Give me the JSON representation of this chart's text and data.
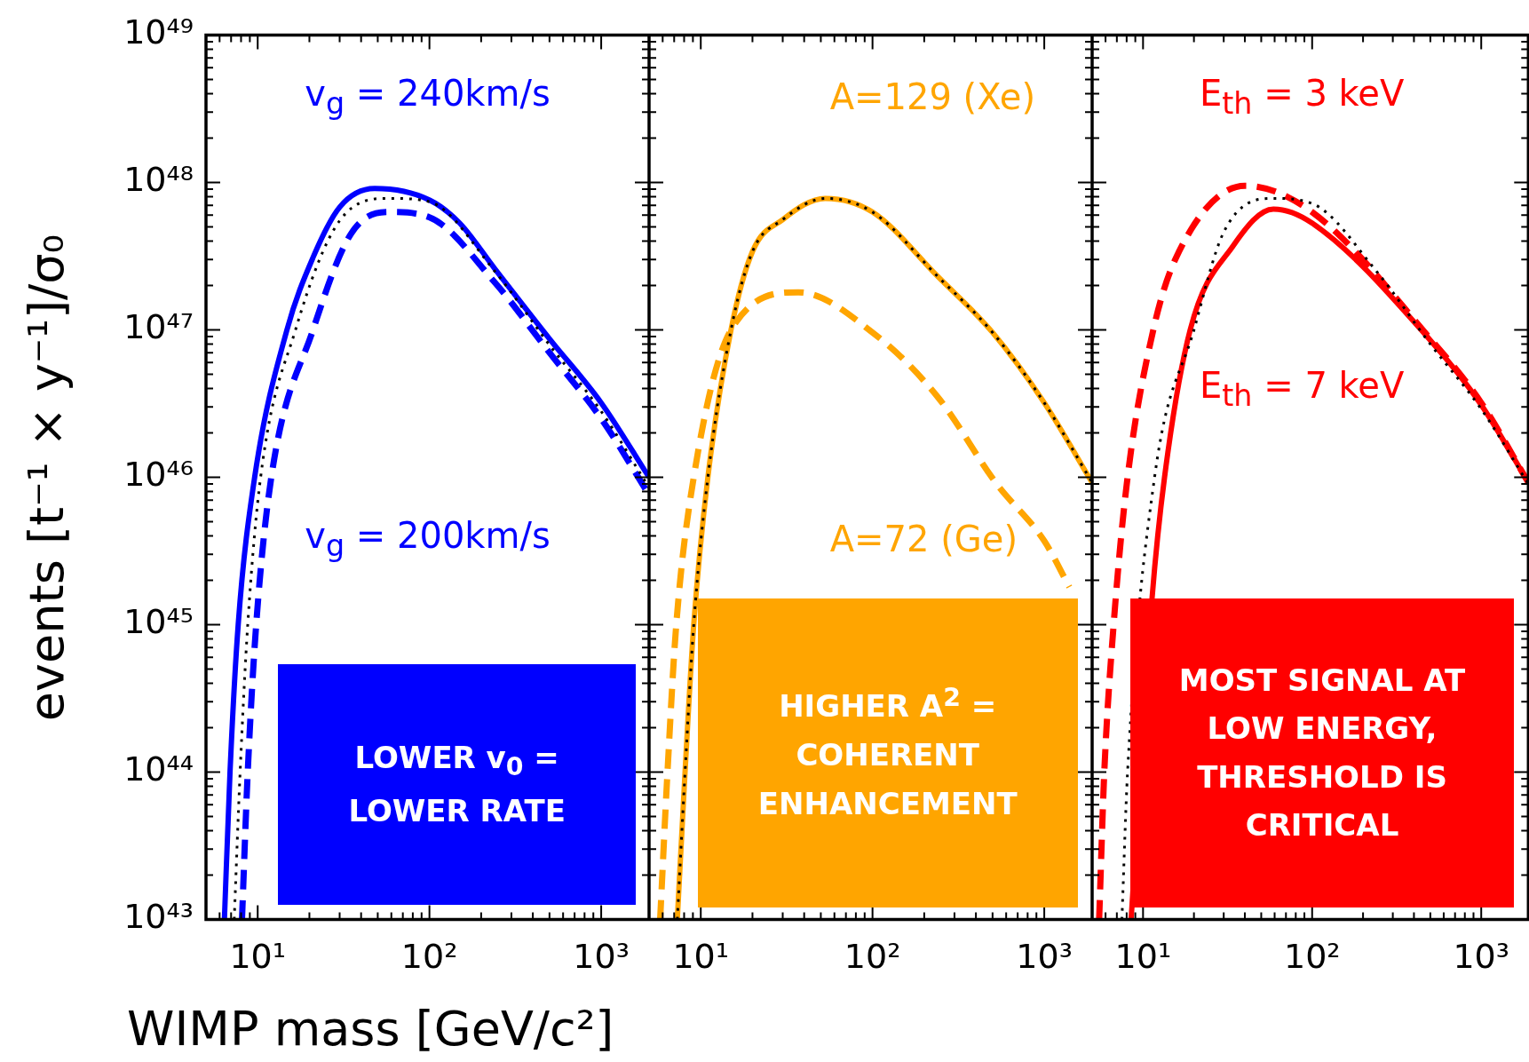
{
  "chart_data": [
    {
      "type": "line",
      "xlabel": "WIMP mass [GeV/c²]",
      "ylabel": "events [t⁻¹ × y⁻¹]/σ₀",
      "log": "xy",
      "xlim": [
        5,
        1900
      ],
      "ylim": [
        1e+43,
        1e+49
      ],
      "xticks": [
        {
          "value": 10,
          "label": "10¹"
        },
        {
          "value": 100,
          "label": "10²"
        },
        {
          "value": 1000,
          "label": "10³"
        }
      ],
      "yticks": [
        {
          "value": 1e+43,
          "label": "10⁴³"
        },
        {
          "value": 1e+44,
          "label": "10⁴⁴"
        },
        {
          "value": 1e+45,
          "label": "10⁴⁵"
        },
        {
          "value": 1e+46,
          "label": "10⁴⁶"
        },
        {
          "value": 1e+47,
          "label": "10⁴⁷"
        },
        {
          "value": 1e+48,
          "label": "10⁴⁸"
        },
        {
          "value": 1e+49,
          "label": "10⁴⁹"
        }
      ],
      "series": [
        {
          "name": "v$_{g}$ = 240km/s",
          "color": "#0000ff",
          "line_style": "solid",
          "x": [
            6.4,
            6.9,
            7.7,
            9.6,
            14.8,
            21,
            30,
            48,
            100,
            150,
            240,
            500,
            1000,
            1900
          ],
          "values": [
            1e+43,
            1e+44,
            1e+45,
            1e+46,
            1e+47,
            3.1e+47,
            6.8e+47,
            9.1e+47,
            7.6e+47,
            5.3e+47,
            2.6e+47,
            8.7e+46,
            3.2e+46,
            1e+46
          ]
        },
        {
          "name": "v$_{g}$ = 200km/s",
          "color": "#0000ff",
          "line_style": "dashed",
          "x": [
            8.1,
            8.75,
            9.8,
            12,
            21,
            35,
            58,
            100,
            240,
            500,
            1000,
            1900
          ],
          "values": [
            1e+43,
            1e+44,
            1e+45,
            1e+46,
            1e+47,
            4.5e+47,
            6.3e+47,
            5.8e+47,
            2.1e+47,
            7e+46,
            2.5e+46,
            7.6e+45
          ]
        },
        {
          "color": "#000000",
          "line_style": "dotted",
          "x": [
            7.3,
            7.9,
            8.75,
            10.4,
            16.6,
            30,
            58,
            100,
            240,
            500,
            1000,
            1900
          ],
          "values": [
            1e+43,
            1e+44,
            1e+45,
            1e+46,
            1e+47,
            5.5e+47,
            7.8e+47,
            7.4e+47,
            2.5e+47,
            7.9e+46,
            2.8e+46,
            8.5e+45
          ]
        }
      ],
      "annotations": [
        "LOWER v$_{0}$ = LOWER RATE"
      ]
    },
    {
      "type": "line",
      "log": "xy",
      "xlim": [
        5,
        1900
      ],
      "ylim": [
        1e+43,
        1e+49
      ],
      "tick_labels": "x",
      "xticks": [
        {
          "value": 10,
          "label": "10¹"
        },
        {
          "value": 100,
          "label": "10²"
        },
        {
          "value": 1000,
          "label": "10³"
        }
      ],
      "yticks": [
        {
          "value": 1e+43,
          "label": null
        },
        {
          "value": 1e+44,
          "label": null
        },
        {
          "value": 1e+45,
          "label": null
        },
        {
          "value": 1e+46,
          "label": null
        },
        {
          "value": 1e+47,
          "label": null
        },
        {
          "value": 1e+48,
          "label": null
        },
        {
          "value": 1e+49,
          "label": null
        }
      ],
      "series": [
        {
          "name": "A=129 (Xe)",
          "color": "#ffa500",
          "line_style": "solid",
          "x": [
            7.3,
            8.1,
            9.1,
            11,
            15,
            20,
            30,
            53,
            100,
            240,
            500,
            1000,
            1900
          ],
          "values": [
            1e+43,
            1e+44,
            1e+45,
            1e+46,
            1e+47,
            3.4e+47,
            5.6e+47,
            7.8e+47,
            6.3e+47,
            2.3e+47,
            9.6e+46,
            3.2e+46,
            9.2e+45
          ]
        },
        {
          "name": "A=72 (Ge)",
          "color": "#ffa500",
          "line_style": "dashed",
          "x": [
            5.8,
            6.4,
            7.2,
            9.1,
            15,
            37,
            100,
            240,
            525,
            1000,
            1400
          ],
          "values": [
            1e+43,
            1e+44,
            1e+45,
            1e+46,
            1e+47,
            1.8e+47,
            9.6e+46,
            3.5e+46,
            9.1e+45,
            3.7e+45,
            1.8e+45
          ]
        },
        {
          "color": "#000000",
          "line_style": "dotted",
          "x": [
            7.3,
            8.1,
            9.1,
            11,
            15,
            20,
            30,
            53,
            100,
            240,
            500,
            1000,
            1900
          ],
          "values": [
            1e+43,
            1e+44,
            1e+45,
            1e+46,
            1e+47,
            3.4e+47,
            5.6e+47,
            7.8e+47,
            6.3e+47,
            2.3e+47,
            9.6e+46,
            3.2e+46,
            9.2e+45
          ]
        }
      ],
      "annotations": [
        "HIGHER A$^{2}$ = COHERENT ENHANCEMENT"
      ]
    },
    {
      "type": "line",
      "log": "xy",
      "xlim": [
        5,
        1900
      ],
      "ylim": [
        1e+43,
        1e+49
      ],
      "tick_labels": "x",
      "xticks": [
        {
          "value": 10,
          "label": "10¹"
        },
        {
          "value": 100,
          "label": "10²"
        },
        {
          "value": 1000,
          "label": "10³"
        }
      ],
      "yticks": [
        {
          "value": 1e+43,
          "label": null
        },
        {
          "value": 1e+44,
          "label": null
        },
        {
          "value": 1e+45,
          "label": null
        },
        {
          "value": 1e+46,
          "label": null
        },
        {
          "value": 1e+47,
          "label": null
        },
        {
          "value": 1e+48,
          "label": null
        },
        {
          "value": 1e+49,
          "label": null
        }
      ],
      "series": [
        {
          "name": "E$_{th}$ = 3 keV",
          "color": "#ff0000",
          "line_style": "dashed",
          "x": [
            5.5,
            5.9,
            6.7,
            8.1,
            11.5,
            15.7,
            40,
            100,
            500,
            1000,
            1900
          ],
          "values": [
            1e+43,
            1e+44,
            1e+45,
            1e+46,
            1e+47,
            3.1e+47,
            9.5e+47,
            6.3e+47,
            8.7e+46,
            3.2e+46,
            9.2e+45
          ]
        },
        {
          "name": "E$_{th}$ = 7 keV",
          "color": "#ff0000",
          "line_style": "solid",
          "x": [
            8.5,
            11.3,
            13.4,
            19,
            34,
            59,
            100,
            500,
            1000,
            1900
          ],
          "values": [
            1e+43,
            1.5e+45,
            1e+46,
            1e+47,
            3.7e+47,
            6.6e+47,
            5.3e+47,
            8.5e+46,
            3.1e+46,
            9.2e+45
          ]
        },
        {
          "color": "#000000",
          "line_style": "dotted",
          "x": [
            7.5,
            8.1,
            11.7,
            20,
            30,
            58,
            100,
            240,
            500,
            1000,
            1900
          ],
          "values": [
            1e+43,
            1e+44,
            1e+46,
            1e+47,
            4.6e+47,
            7.8e+47,
            7.2e+47,
            2.5e+47,
            8e+46,
            2.9e+46,
            9e+45
          ]
        }
      ],
      "annotations": [
        "MOST SIGNAL AT LOW ENERGY, THRESHOLD IS CRITICAL"
      ]
    }
  ]
}
